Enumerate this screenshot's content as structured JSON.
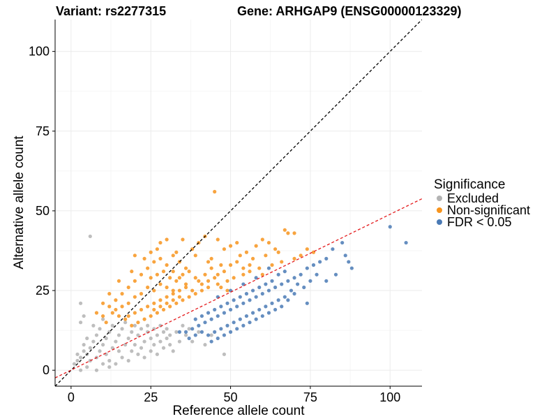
{
  "chart_data": {
    "type": "scatter",
    "title_left": "Variant: rs2277315",
    "title_right": "Gene: ARHGAP9 (ENSG00000123329)",
    "xlabel": "Reference allele count",
    "ylabel": "Alternative allele count",
    "xlim": [
      -5,
      110
    ],
    "ylim": [
      -5,
      110
    ],
    "xticks": [
      0,
      25,
      50,
      75,
      100
    ],
    "yticks": [
      0,
      25,
      50,
      75,
      100
    ],
    "grid": true,
    "legend": {
      "title": "Significance",
      "position": "right",
      "entries": [
        {
          "name": "Excluded",
          "color": "#b3b3b3"
        },
        {
          "name": "Non-significant",
          "color": "#f7941d"
        },
        {
          "name": "FDR < 0.05",
          "color": "#4a7ab5"
        }
      ]
    },
    "reference_lines": [
      {
        "name": "identity",
        "style": "dashed",
        "color": "#000000",
        "slope": 1,
        "intercept": 0
      },
      {
        "name": "expected-ratio",
        "style": "dashed",
        "color": "#e41a1c",
        "x": [
          -5,
          110
        ],
        "y": [
          -2.4,
          53.8
        ]
      }
    ],
    "series": [
      {
        "name": "Excluded",
        "color": "#b3b3b3",
        "points": [
          [
            6,
            42
          ],
          [
            3,
            21
          ],
          [
            1,
            2
          ],
          [
            2,
            3
          ],
          [
            2,
            5
          ],
          [
            3,
            4
          ],
          [
            4,
            6
          ],
          [
            4,
            8
          ],
          [
            5,
            5
          ],
          [
            5,
            10
          ],
          [
            6,
            3
          ],
          [
            6,
            7
          ],
          [
            7,
            9
          ],
          [
            8,
            4
          ],
          [
            8,
            11
          ],
          [
            9,
            6
          ],
          [
            9,
            13
          ],
          [
            10,
            2
          ],
          [
            10,
            8
          ],
          [
            11,
            10
          ],
          [
            11,
            5
          ],
          [
            12,
            12
          ],
          [
            12,
            3
          ],
          [
            13,
            7
          ],
          [
            13,
            14
          ],
          [
            14,
            9
          ],
          [
            14,
            2
          ],
          [
            15,
            11
          ],
          [
            15,
            6
          ],
          [
            16,
            13
          ],
          [
            16,
            4
          ],
          [
            17,
            8
          ],
          [
            17,
            15
          ],
          [
            18,
            10
          ],
          [
            18,
            3
          ],
          [
            19,
            12
          ],
          [
            19,
            6
          ],
          [
            20,
            14
          ],
          [
            20,
            8
          ],
          [
            21,
            5
          ],
          [
            21,
            11
          ],
          [
            22,
            13
          ],
          [
            22,
            7
          ],
          [
            23,
            9
          ],
          [
            23,
            4
          ],
          [
            24,
            12
          ],
          [
            24,
            14
          ],
          [
            25,
            6
          ],
          [
            25,
            10
          ],
          [
            26,
            13
          ],
          [
            26,
            8
          ],
          [
            27,
            11
          ],
          [
            27,
            5
          ],
          [
            28,
            14
          ],
          [
            28,
            9
          ],
          [
            29,
            12
          ],
          [
            29,
            7
          ],
          [
            30,
            10
          ],
          [
            30,
            13
          ],
          [
            31,
            8
          ],
          [
            31,
            11
          ],
          [
            32,
            6
          ],
          [
            33,
            12
          ],
          [
            34,
            9
          ],
          [
            35,
            14
          ],
          [
            36,
            11
          ],
          [
            37,
            13
          ],
          [
            38,
            9
          ],
          [
            40,
            12
          ],
          [
            42,
            8
          ],
          [
            44,
            11
          ],
          [
            48,
            5
          ],
          [
            3,
            15
          ],
          [
            4,
            17
          ],
          [
            7,
            14
          ],
          [
            10,
            16
          ],
          [
            3,
            0
          ],
          [
            5,
            1
          ],
          [
            8,
            0
          ],
          [
            12,
            1
          ]
        ]
      },
      {
        "name": "Non-significant",
        "color": "#f7941d",
        "points": [
          [
            45,
            56
          ],
          [
            67,
            44
          ],
          [
            68,
            43
          ],
          [
            70,
            43
          ],
          [
            62,
            40
          ],
          [
            64,
            38
          ],
          [
            60,
            41
          ],
          [
            58,
            39
          ],
          [
            52,
            40
          ],
          [
            55,
            37
          ],
          [
            50,
            39
          ],
          [
            48,
            38
          ],
          [
            46,
            41
          ],
          [
            42,
            42
          ],
          [
            40,
            40
          ],
          [
            38,
            38
          ],
          [
            35,
            41
          ],
          [
            30,
            41
          ],
          [
            28,
            40
          ],
          [
            25,
            37
          ],
          [
            20,
            36
          ],
          [
            32,
            36
          ],
          [
            34,
            34
          ],
          [
            36,
            32
          ],
          [
            44,
            35
          ],
          [
            47,
            33
          ],
          [
            53,
            36
          ],
          [
            57,
            35
          ],
          [
            61,
            36
          ],
          [
            65,
            37
          ],
          [
            70,
            35
          ],
          [
            72,
            36
          ],
          [
            74,
            38
          ],
          [
            76,
            37
          ],
          [
            66,
            34
          ],
          [
            63,
            33
          ],
          [
            59,
            32
          ],
          [
            56,
            31
          ],
          [
            54,
            30
          ],
          [
            51,
            29
          ],
          [
            49,
            28
          ],
          [
            46,
            27
          ],
          [
            43,
            26
          ],
          [
            41,
            25
          ],
          [
            39,
            24
          ],
          [
            37,
            23
          ],
          [
            35,
            22
          ],
          [
            33,
            21
          ],
          [
            31,
            20
          ],
          [
            29,
            19
          ],
          [
            27,
            18
          ],
          [
            25,
            17
          ],
          [
            23,
            16
          ],
          [
            21,
            15
          ],
          [
            19,
            14
          ],
          [
            17,
            16
          ],
          [
            15,
            17
          ],
          [
            13,
            18
          ],
          [
            11,
            15
          ],
          [
            10,
            17
          ],
          [
            12,
            20
          ],
          [
            14,
            22
          ],
          [
            16,
            24
          ],
          [
            18,
            26
          ],
          [
            20,
            28
          ],
          [
            22,
            30
          ],
          [
            24,
            32
          ],
          [
            26,
            34
          ],
          [
            28,
            35
          ],
          [
            30,
            33
          ],
          [
            32,
            31
          ],
          [
            34,
            29
          ],
          [
            36,
            27
          ],
          [
            38,
            25
          ],
          [
            40,
            28
          ],
          [
            42,
            30
          ],
          [
            44,
            32
          ],
          [
            46,
            30
          ],
          [
            48,
            31
          ],
          [
            50,
            33
          ],
          [
            52,
            34
          ],
          [
            54,
            32
          ],
          [
            56,
            33
          ],
          [
            24,
            26
          ],
          [
            26,
            25
          ],
          [
            28,
            27
          ],
          [
            30,
            26
          ],
          [
            32,
            25
          ],
          [
            22,
            24
          ],
          [
            20,
            23
          ],
          [
            18,
            21
          ],
          [
            16,
            20
          ],
          [
            14,
            19
          ],
          [
            24,
            20
          ],
          [
            26,
            21
          ],
          [
            28,
            22
          ],
          [
            30,
            23
          ],
          [
            32,
            24
          ],
          [
            34,
            25
          ],
          [
            36,
            26
          ],
          [
            22,
            19
          ],
          [
            20,
            18
          ],
          [
            18,
            17
          ],
          [
            26,
            19
          ],
          [
            28,
            20
          ],
          [
            30,
            21
          ],
          [
            32,
            22
          ],
          [
            34,
            23
          ],
          [
            25,
            29
          ],
          [
            27,
            30
          ],
          [
            29,
            31
          ],
          [
            31,
            29
          ],
          [
            33,
            28
          ],
          [
            35,
            30
          ],
          [
            37,
            31
          ],
          [
            39,
            29
          ],
          [
            41,
            27
          ],
          [
            43,
            28
          ],
          [
            45,
            29
          ],
          [
            47,
            26
          ],
          [
            49,
            25
          ],
          [
            10,
            21
          ],
          [
            8,
            18
          ],
          [
            12,
            24
          ],
          [
            15,
            28
          ],
          [
            19,
            31
          ],
          [
            23,
            35
          ],
          [
            27,
            38
          ],
          [
            33,
            37
          ],
          [
            39,
            36
          ],
          [
            43,
            34
          ],
          [
            60,
            30
          ]
        ]
      },
      {
        "name": "FDR < 0.05",
        "color": "#4a7ab5",
        "points": [
          [
            100,
            45
          ],
          [
            105,
            40
          ],
          [
            85,
            40
          ],
          [
            86,
            36
          ],
          [
            88,
            32
          ],
          [
            82,
            38
          ],
          [
            80,
            35
          ],
          [
            78,
            34
          ],
          [
            76,
            33
          ],
          [
            74,
            32
          ],
          [
            72,
            30
          ],
          [
            70,
            29
          ],
          [
            68,
            28
          ],
          [
            66,
            27
          ],
          [
            64,
            26
          ],
          [
            62,
            25
          ],
          [
            60,
            24
          ],
          [
            58,
            23
          ],
          [
            56,
            22
          ],
          [
            54,
            21
          ],
          [
            52,
            20
          ],
          [
            50,
            19
          ],
          [
            48,
            18
          ],
          [
            46,
            17
          ],
          [
            44,
            16
          ],
          [
            42,
            15
          ],
          [
            40,
            14
          ],
          [
            38,
            13
          ],
          [
            36,
            12
          ],
          [
            34,
            12
          ],
          [
            70,
            24
          ],
          [
            68,
            22
          ],
          [
            66,
            20
          ],
          [
            64,
            19
          ],
          [
            62,
            18
          ],
          [
            60,
            17
          ],
          [
            58,
            16
          ],
          [
            56,
            15
          ],
          [
            54,
            14
          ],
          [
            52,
            13
          ],
          [
            50,
            12
          ],
          [
            48,
            11
          ],
          [
            46,
            10
          ],
          [
            44,
            9
          ],
          [
            75,
            28
          ],
          [
            77,
            30
          ],
          [
            73,
            26
          ],
          [
            71,
            27
          ],
          [
            69,
            25
          ],
          [
            67,
            23
          ],
          [
            65,
            22
          ],
          [
            63,
            21
          ],
          [
            61,
            20
          ],
          [
            59,
            19
          ],
          [
            57,
            18
          ],
          [
            55,
            17
          ],
          [
            53,
            16
          ],
          [
            51,
            15
          ],
          [
            49,
            14
          ],
          [
            47,
            13
          ],
          [
            45,
            12
          ],
          [
            43,
            11
          ],
          [
            41,
            12
          ],
          [
            39,
            11
          ],
          [
            37,
            10
          ],
          [
            65,
            30
          ],
          [
            63,
            28
          ],
          [
            61,
            27
          ],
          [
            59,
            26
          ],
          [
            57,
            25
          ],
          [
            55,
            24
          ],
          [
            53,
            23
          ],
          [
            51,
            22
          ],
          [
            49,
            21
          ],
          [
            47,
            20
          ],
          [
            45,
            19
          ],
          [
            43,
            18
          ],
          [
            41,
            17
          ],
          [
            39,
            16
          ],
          [
            67,
            31
          ],
          [
            62,
            32
          ],
          [
            58,
            29
          ],
          [
            54,
            27
          ],
          [
            50,
            25
          ],
          [
            46,
            23
          ],
          [
            80,
            28
          ],
          [
            83,
            30
          ],
          [
            87,
            34
          ],
          [
            74,
            21
          ]
        ]
      }
    ]
  }
}
